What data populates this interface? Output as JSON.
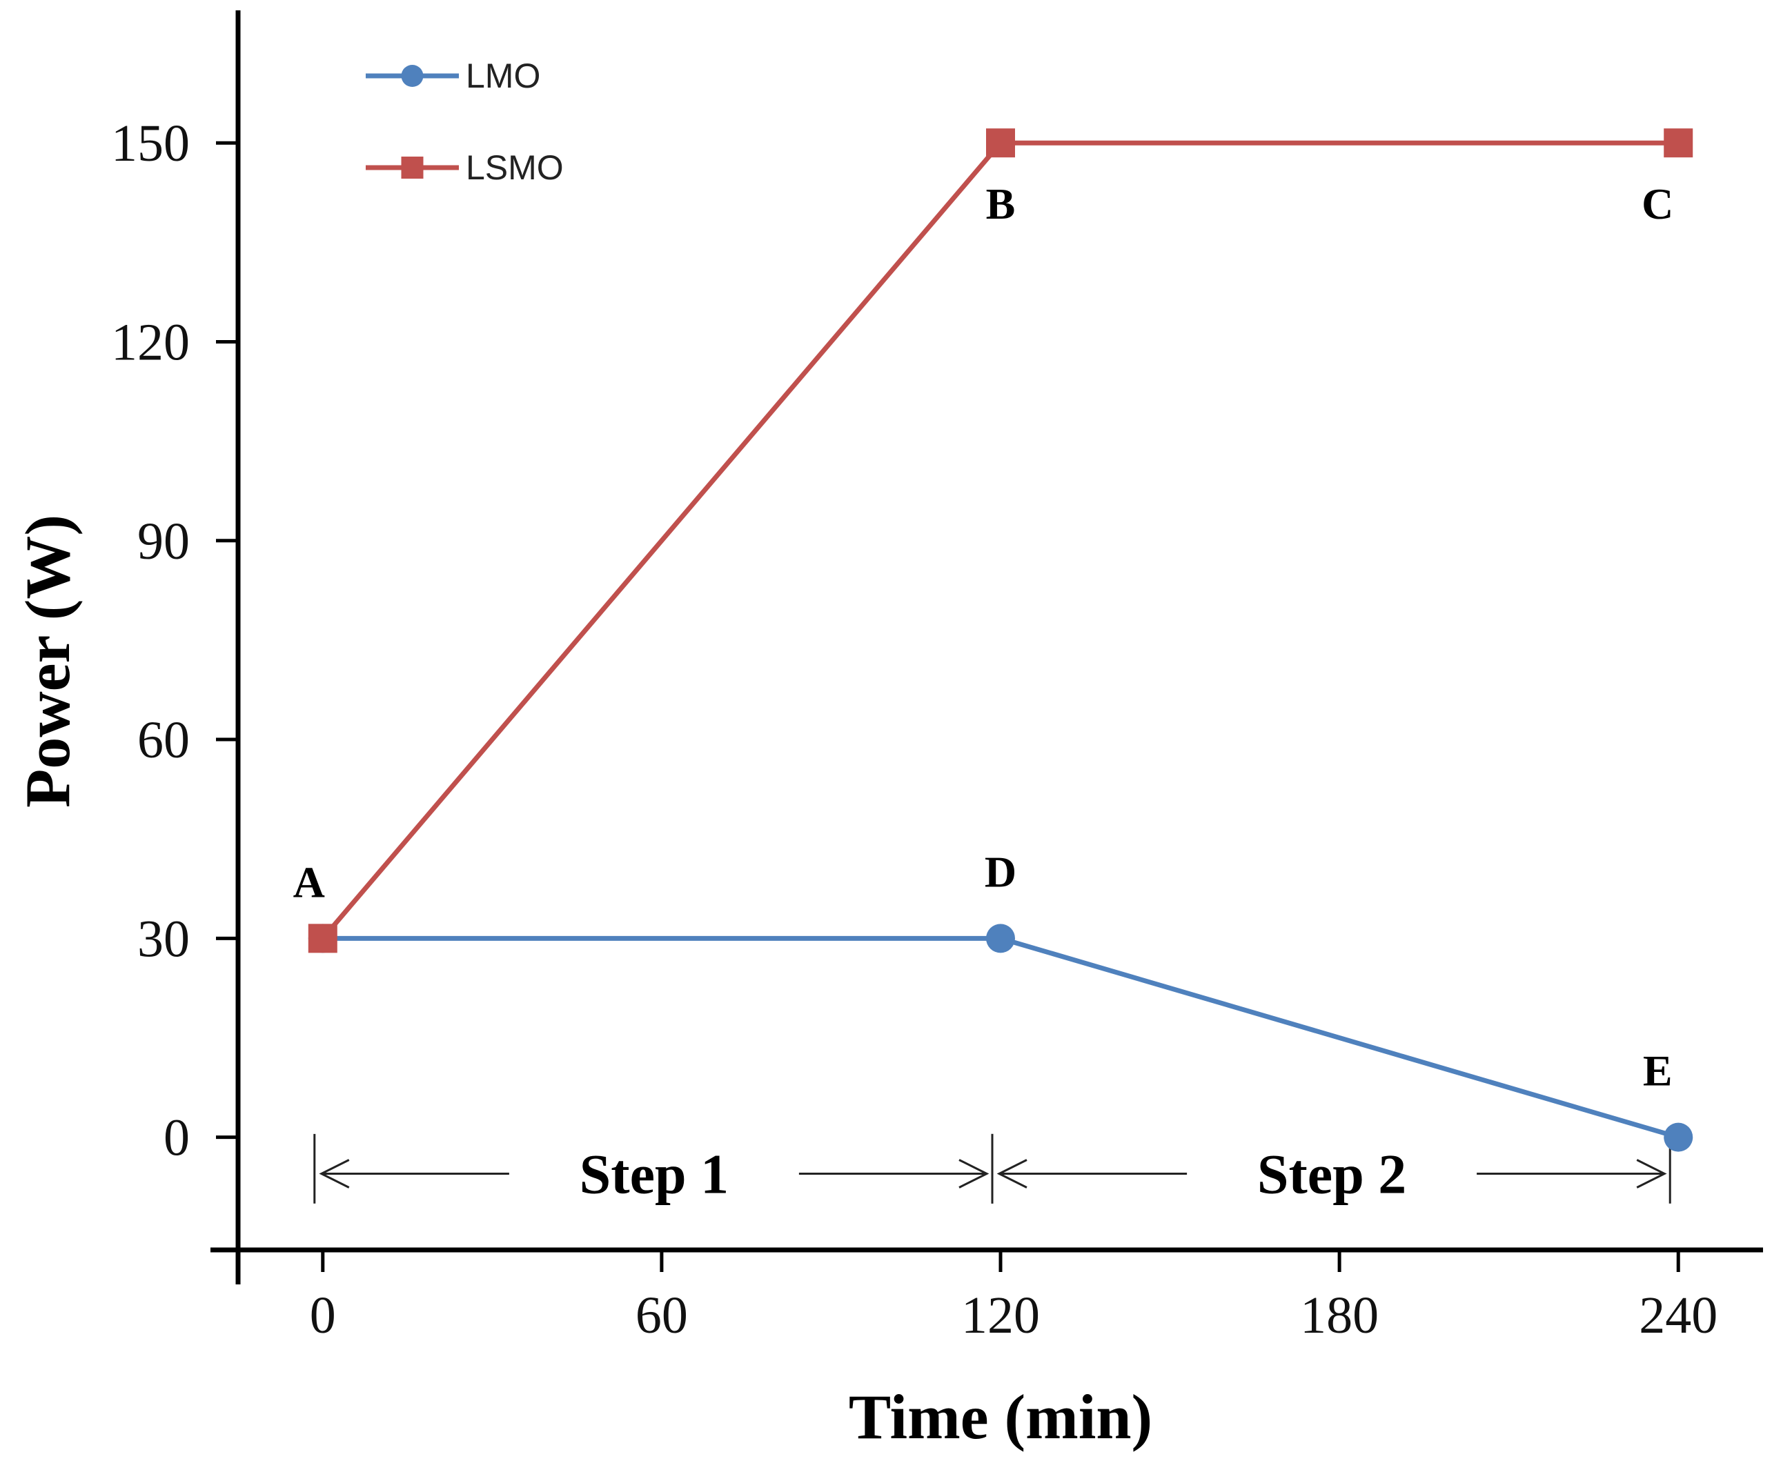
{
  "chart_data": {
    "type": "line",
    "title": "",
    "xlabel": "Time (min)",
    "ylabel": "Power (W)",
    "xlim": [
      -15,
      255
    ],
    "ylim": [
      -17,
      170
    ],
    "xticks": [
      0,
      60,
      120,
      180,
      240
    ],
    "yticks": [
      0,
      30,
      60,
      90,
      120,
      150
    ],
    "grid": false,
    "legend_position": "top-left",
    "colors": {
      "LMO": "#4f81bd",
      "LSMO": "#c0504d",
      "axis": "#000000",
      "arrow": "#222222"
    },
    "series": [
      {
        "name": "LMO",
        "marker": "circle",
        "x": [
          0,
          120,
          240
        ],
        "y": [
          30,
          30,
          0
        ]
      },
      {
        "name": "LSMO",
        "marker": "square",
        "x": [
          0,
          120,
          240
        ],
        "y": [
          30,
          150,
          150
        ]
      }
    ],
    "point_labels": [
      {
        "text": "A",
        "x": 0,
        "y": 30
      },
      {
        "text": "B",
        "x": 120,
        "y": 150
      },
      {
        "text": "C",
        "x": 240,
        "y": 150
      },
      {
        "text": "D",
        "x": 120,
        "y": 30
      },
      {
        "text": "E",
        "x": 240,
        "y": 0
      }
    ],
    "steps": [
      {
        "label": "Step 1",
        "from": 0,
        "to": 120
      },
      {
        "label": "Step 2",
        "from": 120,
        "to": 240
      }
    ]
  }
}
